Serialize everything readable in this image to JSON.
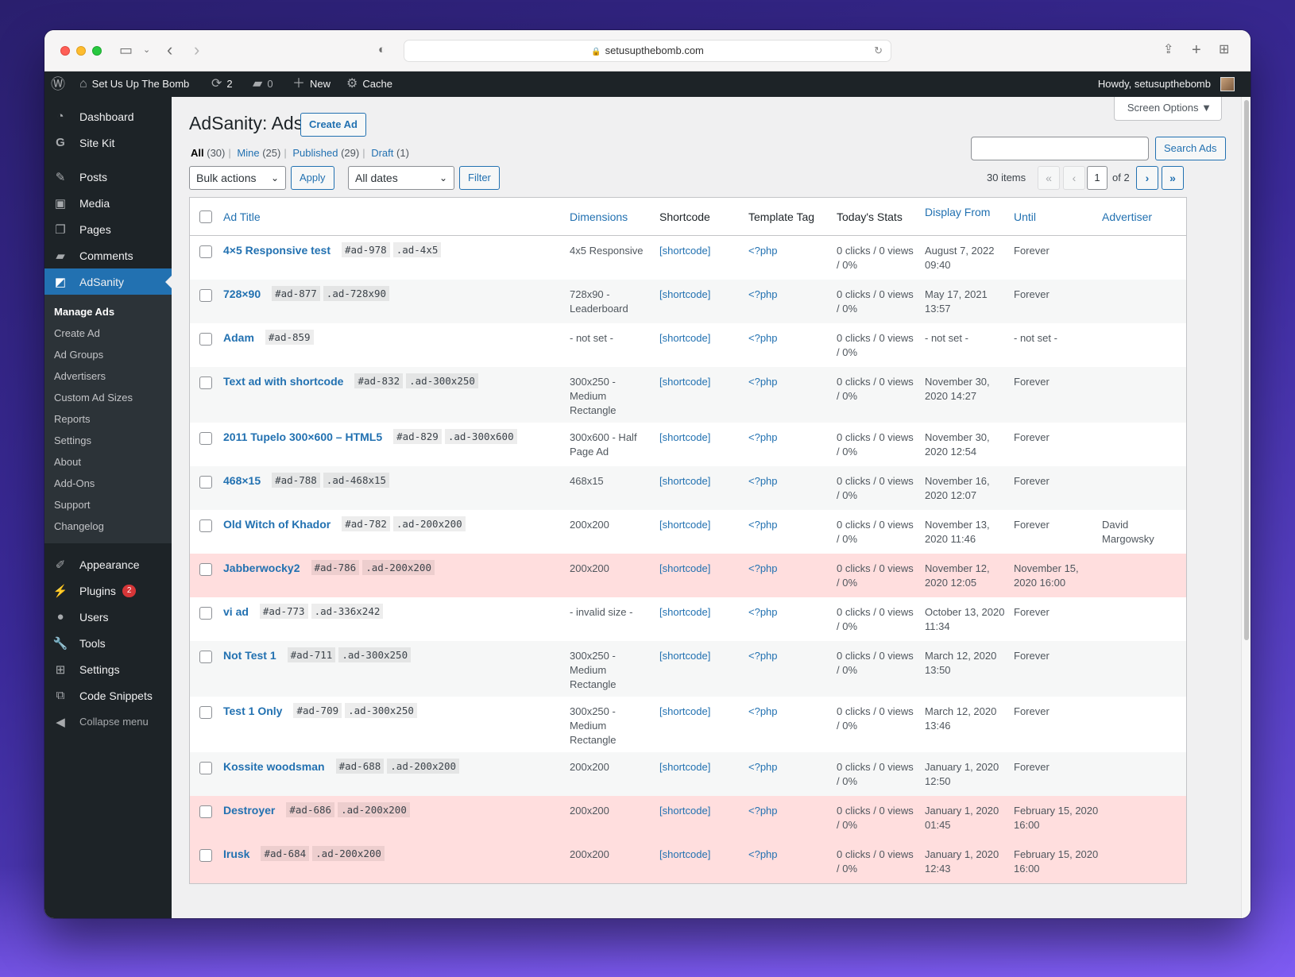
{
  "browser": {
    "url": "setusupthebomb.com"
  },
  "adminbar": {
    "site_name": "Set Us Up The Bomb",
    "updates_count": "2",
    "comments_count": "0",
    "new_label": "New",
    "cache_label": "Cache",
    "howdy": "Howdy, setusupthebomb"
  },
  "sidebar": {
    "items_top": [
      {
        "label": "Dashboard",
        "icon": "dashboard-icon"
      },
      {
        "label": "Site Kit",
        "icon": "google-icon"
      }
    ],
    "items_content": [
      {
        "label": "Posts",
        "icon": "pin-icon"
      },
      {
        "label": "Media",
        "icon": "media-icon"
      },
      {
        "label": "Pages",
        "icon": "pages-icon"
      },
      {
        "label": "Comments",
        "icon": "comment-icon"
      }
    ],
    "active": {
      "label": "AdSanity",
      "icon": "adsanity-icon"
    },
    "submenu": [
      "Manage Ads",
      "Create Ad",
      "Ad Groups",
      "Advertisers",
      "Custom Ad Sizes",
      "Reports",
      "Settings",
      "About",
      "Add-Ons",
      "Support",
      "Changelog"
    ],
    "items_bottom": [
      {
        "label": "Appearance",
        "icon": "brush-icon"
      },
      {
        "label": "Plugins",
        "icon": "plugin-icon",
        "badge": "2"
      },
      {
        "label": "Users",
        "icon": "user-icon"
      },
      {
        "label": "Tools",
        "icon": "wrench-icon"
      },
      {
        "label": "Settings",
        "icon": "settings-icon"
      },
      {
        "label": "Code Snippets",
        "icon": "code-icon"
      }
    ],
    "collapse": "Collapse menu"
  },
  "page": {
    "screen_options": "Screen Options",
    "title": "AdSanity: Ads",
    "create_button": "Create Ad",
    "views": [
      {
        "label": "All",
        "count": "(30)",
        "current": true
      },
      {
        "label": "Mine",
        "count": "(25)"
      },
      {
        "label": "Published",
        "count": "(29)"
      },
      {
        "label": "Draft",
        "count": "(1)"
      }
    ],
    "search_button": "Search Ads",
    "bulk_actions": "Bulk actions",
    "apply": "Apply",
    "all_dates": "All dates",
    "filter": "Filter",
    "items_count": "30 items",
    "current_page": "1",
    "total_pages": "of 2",
    "pager": {
      "first": "«",
      "prev": "‹",
      "next": "›",
      "last": "»"
    }
  },
  "table": {
    "columns": {
      "title": "Ad Title",
      "dimensions": "Dimensions",
      "shortcode": "Shortcode",
      "template_tag": "Template Tag",
      "stats": "Today's Stats",
      "display_from": "Display From",
      "until": "Until",
      "advertiser": "Advertiser"
    },
    "rows": [
      {
        "title": "4×5 Responsive test",
        "id": "#ad-978",
        "cls": ".ad-4x5",
        "dimensions": "4x5 Responsive",
        "shortcode": "[shortcode]",
        "tag": "<?php",
        "stats": "0 clicks / 0 views / 0%",
        "from": "August 7, 2022 09:40",
        "until": "Forever",
        "advertiser": "",
        "status": "normal"
      },
      {
        "title": "728×90",
        "id": "#ad-877",
        "cls": ".ad-728x90",
        "dimensions": "728x90 - Leaderboard",
        "shortcode": "[shortcode]",
        "tag": "<?php",
        "stats": "0 clicks / 0 views / 0%",
        "from": "May 17, 2021 13:57",
        "until": "Forever",
        "advertiser": "",
        "status": "normal"
      },
      {
        "title": "Adam",
        "id": "#ad-859",
        "cls": "",
        "dimensions": "- not set -",
        "shortcode": "[shortcode]",
        "tag": "<?php",
        "stats": "0 clicks / 0 views / 0%",
        "from": "- not set -",
        "until": "- not set -",
        "advertiser": "",
        "status": "normal"
      },
      {
        "title": "Text ad with shortcode",
        "id": "#ad-832",
        "cls": ".ad-300x250",
        "dimensions": "300x250 - Medium Rectangle",
        "shortcode": "[shortcode]",
        "tag": "<?php",
        "stats": "0 clicks / 0 views / 0%",
        "from": "November 30, 2020 14:27",
        "until": "Forever",
        "advertiser": "",
        "status": "normal"
      },
      {
        "title": "2011 Tupelo 300×600 – HTML5",
        "id": "#ad-829",
        "cls": ".ad-300x600",
        "dimensions": "300x600 - Half Page Ad",
        "shortcode": "[shortcode]",
        "tag": "<?php",
        "stats": "0 clicks / 0 views / 0%",
        "from": "November 30, 2020 12:54",
        "until": "Forever",
        "advertiser": "",
        "status": "normal"
      },
      {
        "title": "468×15",
        "id": "#ad-788",
        "cls": ".ad-468x15",
        "dimensions": "468x15",
        "shortcode": "[shortcode]",
        "tag": "<?php",
        "stats": "0 clicks / 0 views / 0%",
        "from": "November 16, 2020 12:07",
        "until": "Forever",
        "advertiser": "",
        "status": "normal"
      },
      {
        "title": "Old Witch of Khador",
        "id": "#ad-782",
        "cls": ".ad-200x200",
        "dimensions": "200x200",
        "shortcode": "[shortcode]",
        "tag": "<?php",
        "stats": "0 clicks / 0 views / 0%",
        "from": "November 13, 2020 11:46",
        "until": "Forever",
        "advertiser": "David Margowsky",
        "status": "normal"
      },
      {
        "title": "Jabberwocky2",
        "id": "#ad-786",
        "cls": ".ad-200x200",
        "dimensions": "200x200",
        "shortcode": "[shortcode]",
        "tag": "<?php",
        "stats": "0 clicks / 0 views / 0%",
        "from": "November 12, 2020 12:05",
        "until": "November 15, 2020 16:00",
        "advertiser": "",
        "status": "expired"
      },
      {
        "title": "vi ad",
        "id": "#ad-773",
        "cls": ".ad-336x242",
        "dimensions": "- invalid size -",
        "shortcode": "[shortcode]",
        "tag": "<?php",
        "stats": "0 clicks / 0 views / 0%",
        "from": "October 13, 2020 11:34",
        "until": "Forever",
        "advertiser": "",
        "status": "normal"
      },
      {
        "title": "Not Test 1",
        "id": "#ad-711",
        "cls": ".ad-300x250",
        "dimensions": "300x250 - Medium Rectangle",
        "shortcode": "[shortcode]",
        "tag": "<?php",
        "stats": "0 clicks / 0 views / 0%",
        "from": "March 12, 2020 13:50",
        "until": "Forever",
        "advertiser": "",
        "status": "normal"
      },
      {
        "title": "Test 1 Only",
        "id": "#ad-709",
        "cls": ".ad-300x250",
        "dimensions": "300x250 - Medium Rectangle",
        "shortcode": "[shortcode]",
        "tag": "<?php",
        "stats": "0 clicks / 0 views / 0%",
        "from": "March 12, 2020 13:46",
        "until": "Forever",
        "advertiser": "",
        "status": "normal"
      },
      {
        "title": "Kossite woodsman",
        "id": "#ad-688",
        "cls": ".ad-200x200",
        "dimensions": "200x200",
        "shortcode": "[shortcode]",
        "tag": "<?php",
        "stats": "0 clicks / 0 views / 0%",
        "from": "January 1, 2020 12:50",
        "until": "Forever",
        "advertiser": "",
        "status": "normal"
      },
      {
        "title": "Destroyer",
        "id": "#ad-686",
        "cls": ".ad-200x200",
        "dimensions": "200x200",
        "shortcode": "[shortcode]",
        "tag": "<?php",
        "stats": "0 clicks / 0 views / 0%",
        "from": "January 1, 2020 01:45",
        "until": "February 15, 2020 16:00",
        "advertiser": "",
        "status": "expired"
      },
      {
        "title": "Irusk",
        "id": "#ad-684",
        "cls": ".ad-200x200",
        "dimensions": "200x200",
        "shortcode": "[shortcode]",
        "tag": "<?php",
        "stats": "0 clicks / 0 views / 0%",
        "from": "January 1, 2020 12:43",
        "until": "February 15, 2020 16:00",
        "advertiser": "",
        "status": "expired"
      }
    ]
  }
}
